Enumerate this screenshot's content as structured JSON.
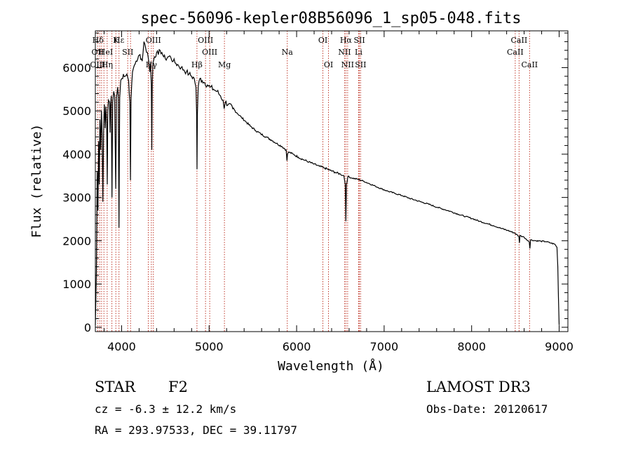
{
  "chart_data": {
    "type": "line",
    "title": "spec-56096-kepler08B56096_1_sp05-048.fits",
    "xlabel": "Wavelength (Å)",
    "ylabel": "Flux (relative)",
    "xlim": [
      3700,
      9100
    ],
    "ylim": [
      -100,
      6850
    ],
    "xticks": [
      4000,
      5000,
      6000,
      7000,
      8000,
      9000
    ],
    "yticks": [
      0,
      1000,
      2000,
      3000,
      4000,
      5000,
      6000
    ],
    "series": [
      {
        "name": "flux",
        "points": [
          [
            3700,
            50
          ],
          [
            3712,
            1300
          ],
          [
            3722,
            3600
          ],
          [
            3730,
            2700
          ],
          [
            3738,
            4300
          ],
          [
            3745,
            3300
          ],
          [
            3752,
            4800
          ],
          [
            3760,
            4100
          ],
          [
            3770,
            5000
          ],
          [
            3778,
            4400
          ],
          [
            3786,
            2900
          ],
          [
            3795,
            4700
          ],
          [
            3803,
            5150
          ],
          [
            3812,
            4600
          ],
          [
            3820,
            5100
          ],
          [
            3830,
            4700
          ],
          [
            3836,
            3300
          ],
          [
            3842,
            5000
          ],
          [
            3850,
            5250
          ],
          [
            3862,
            5200
          ],
          [
            3868,
            4500
          ],
          [
            3873,
            5100
          ],
          [
            3882,
            5350
          ],
          [
            3890,
            3000
          ],
          [
            3898,
            5200
          ],
          [
            3910,
            5450
          ],
          [
            3920,
            5350
          ],
          [
            3933,
            3200
          ],
          [
            3941,
            5300
          ],
          [
            3955,
            5550
          ],
          [
            3962,
            5350
          ],
          [
            3970,
            2300
          ],
          [
            3978,
            5300
          ],
          [
            3990,
            5700
          ],
          [
            4005,
            5750
          ],
          [
            4020,
            5850
          ],
          [
            4040,
            5800
          ],
          [
            4060,
            5850
          ],
          [
            4080,
            5700
          ],
          [
            4095,
            5200
          ],
          [
            4101,
            3400
          ],
          [
            4108,
            5300
          ],
          [
            4125,
            5900
          ],
          [
            4145,
            6050
          ],
          [
            4165,
            6150
          ],
          [
            4185,
            6200
          ],
          [
            4210,
            6300
          ],
          [
            4235,
            6150
          ],
          [
            4255,
            6600
          ],
          [
            4275,
            6450
          ],
          [
            4295,
            6350
          ],
          [
            4310,
            6150
          ],
          [
            4322,
            5900
          ],
          [
            4330,
            6100
          ],
          [
            4340,
            5600
          ],
          [
            4345,
            4100
          ],
          [
            4350,
            5600
          ],
          [
            4358,
            6100
          ],
          [
            4375,
            6250
          ],
          [
            4400,
            6350
          ],
          [
            4420,
            6300
          ],
          [
            4440,
            6400
          ],
          [
            4460,
            6350
          ],
          [
            4480,
            6250
          ],
          [
            4500,
            6200
          ],
          [
            4530,
            6250
          ],
          [
            4560,
            6250
          ],
          [
            4590,
            6150
          ],
          [
            4620,
            6100
          ],
          [
            4650,
            6050
          ],
          [
            4680,
            6000
          ],
          [
            4710,
            5950
          ],
          [
            4740,
            5900
          ],
          [
            4770,
            5850
          ],
          [
            4800,
            5800
          ],
          [
            4830,
            5750
          ],
          [
            4850,
            5550
          ],
          [
            4858,
            4900
          ],
          [
            4862,
            3650
          ],
          [
            4866,
            4900
          ],
          [
            4875,
            5550
          ],
          [
            4895,
            5750
          ],
          [
            4920,
            5700
          ],
          [
            4950,
            5650
          ],
          [
            4980,
            5600
          ],
          [
            5010,
            5550
          ],
          [
            5050,
            5500
          ],
          [
            5090,
            5450
          ],
          [
            5130,
            5350
          ],
          [
            5160,
            5250
          ],
          [
            5172,
            5050
          ],
          [
            5185,
            5200
          ],
          [
            5220,
            5150
          ],
          [
            5270,
            5050
          ],
          [
            5320,
            4950
          ],
          [
            5370,
            4850
          ],
          [
            5420,
            4750
          ],
          [
            5470,
            4650
          ],
          [
            5530,
            4550
          ],
          [
            5590,
            4470
          ],
          [
            5650,
            4400
          ],
          [
            5710,
            4330
          ],
          [
            5770,
            4250
          ],
          [
            5830,
            4180
          ],
          [
            5880,
            4100
          ],
          [
            5890,
            3850
          ],
          [
            5896,
            4000
          ],
          [
            5910,
            4050
          ],
          [
            5960,
            4000
          ],
          [
            6020,
            3930
          ],
          [
            6080,
            3870
          ],
          [
            6140,
            3820
          ],
          [
            6200,
            3770
          ],
          [
            6260,
            3720
          ],
          [
            6320,
            3680
          ],
          [
            6380,
            3630
          ],
          [
            6440,
            3580
          ],
          [
            6500,
            3540
          ],
          [
            6540,
            3500
          ],
          [
            6556,
            3300
          ],
          [
            6563,
            2450
          ],
          [
            6570,
            3300
          ],
          [
            6585,
            3480
          ],
          [
            6630,
            3450
          ],
          [
            6700,
            3420
          ],
          [
            6760,
            3380
          ],
          [
            6830,
            3320
          ],
          [
            6900,
            3260
          ],
          [
            6970,
            3200
          ],
          [
            7050,
            3140
          ],
          [
            7130,
            3090
          ],
          [
            7210,
            3040
          ],
          [
            7290,
            2980
          ],
          [
            7370,
            2930
          ],
          [
            7450,
            2880
          ],
          [
            7530,
            2830
          ],
          [
            7610,
            2770
          ],
          [
            7690,
            2720
          ],
          [
            7770,
            2670
          ],
          [
            7850,
            2610
          ],
          [
            7930,
            2560
          ],
          [
            8010,
            2510
          ],
          [
            8090,
            2450
          ],
          [
            8170,
            2400
          ],
          [
            8250,
            2350
          ],
          [
            8330,
            2290
          ],
          [
            8410,
            2240
          ],
          [
            8490,
            2180
          ],
          [
            8540,
            2100
          ],
          [
            8546,
            1950
          ],
          [
            8552,
            2120
          ],
          [
            8600,
            2080
          ],
          [
            8658,
            1980
          ],
          [
            8666,
            1820
          ],
          [
            8674,
            2020
          ],
          [
            8730,
            2000
          ],
          [
            8790,
            1990
          ],
          [
            8850,
            1980
          ],
          [
            8900,
            1950
          ],
          [
            8950,
            1920
          ],
          [
            8975,
            1850
          ],
          [
            8985,
            1400
          ],
          [
            8992,
            700
          ],
          [
            9000,
            50
          ]
        ]
      }
    ],
    "spectral_lines": [
      {
        "label": "Hδ",
        "x": 3730,
        "row": 1
      },
      {
        "label": "OII",
        "x": 3727,
        "row": 2
      },
      {
        "label": "OIII",
        "x": 3727,
        "row": 3
      },
      {
        "label": "HeI",
        "x": 3820,
        "row": 2
      },
      {
        "label": "Hη",
        "x": 3835,
        "row": 3
      },
      {
        "label": "K",
        "x": 3934,
        "row": 1
      },
      {
        "label": "Hε",
        "x": 3970,
        "row": 1
      },
      {
        "label": "SII",
        "x": 4070,
        "row": 2
      },
      {
        "label": "OIII",
        "x": 4363,
        "row": 1
      },
      {
        "label": "Hγ",
        "x": 4340,
        "row": 3
      },
      {
        "label": "Hβ",
        "x": 4861,
        "row": 3
      },
      {
        "label": "OIII",
        "x": 4959,
        "row": 1
      },
      {
        "label": "OIII",
        "x": 5007,
        "row": 2
      },
      {
        "label": "Mg",
        "x": 5175,
        "row": 3
      },
      {
        "label": "Na",
        "x": 5893,
        "row": 2
      },
      {
        "label": "OI",
        "x": 6300,
        "row": 1
      },
      {
        "label": "OI",
        "x": 6364,
        "row": 3
      },
      {
        "label": "Hα",
        "x": 6563,
        "row": 1
      },
      {
        "label": "NII",
        "x": 6548,
        "row": 2
      },
      {
        "label": "NII",
        "x": 6583,
        "row": 3
      },
      {
        "label": "SII",
        "x": 6717,
        "row": 1
      },
      {
        "label": "Li",
        "x": 6708,
        "row": 2
      },
      {
        "label": "SII",
        "x": 6731,
        "row": 3
      },
      {
        "label": "CaII",
        "x": 8542,
        "row": 1
      },
      {
        "label": "CaII",
        "x": 8498,
        "row": 2
      },
      {
        "label": "CaII",
        "x": 8662,
        "row": 3
      }
    ],
    "line_markers": [
      3727,
      3750,
      3771,
      3798,
      3835,
      3889,
      3934,
      3970,
      4070,
      4102,
      4305,
      4340,
      4363,
      4861,
      4959,
      5007,
      5175,
      5893,
      6300,
      6364,
      6548,
      6563,
      6583,
      6708,
      6717,
      6731,
      8498,
      8542,
      8662
    ]
  },
  "info": {
    "class_label": "STAR",
    "subclass": "F2",
    "survey": "LAMOST DR3",
    "cz": "cz = -6.3 ± 12.2 km/s",
    "obs_date": "Obs-Date: 20120617",
    "coords": "RA = 293.97533, DEC =  39.11797"
  }
}
